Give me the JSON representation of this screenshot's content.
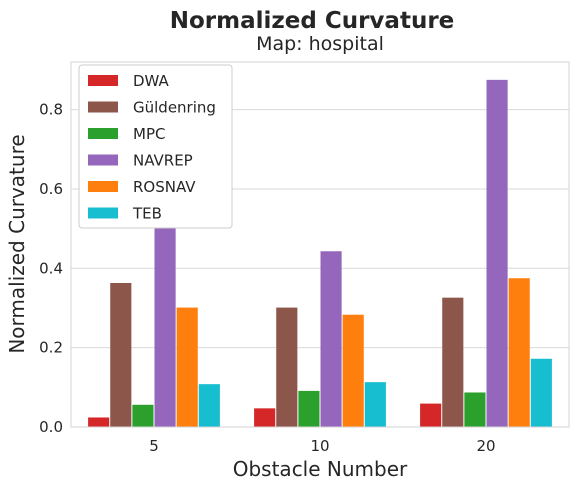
{
  "chart_data": {
    "type": "bar",
    "title": "Normalized Curvature",
    "subtitle": "Map: hospital",
    "xlabel": "Obstacle Number",
    "ylabel": "Normalized Curvature",
    "categories": [
      "5",
      "10",
      "20"
    ],
    "ylim": [
      0,
      0.92
    ],
    "yticks": [
      "0.0",
      "0.2",
      "0.4",
      "0.6",
      "0.8"
    ],
    "grid": "horizontal",
    "legend_position": "top-left",
    "series": [
      {
        "name": "DWA",
        "color": "#d62728",
        "values": [
          0.024,
          0.047,
          0.059
        ]
      },
      {
        "name": "Güldenring",
        "color": "#8c564b",
        "values": [
          0.363,
          0.301,
          0.326
        ]
      },
      {
        "name": "MPC",
        "color": "#2ca02c",
        "values": [
          0.056,
          0.091,
          0.087
        ]
      },
      {
        "name": "NAVREP",
        "color": "#9467bd",
        "values": [
          0.51,
          0.443,
          0.875
        ]
      },
      {
        "name": "ROSNAV",
        "color": "#ff7f0e",
        "values": [
          0.301,
          0.283,
          0.375
        ]
      },
      {
        "name": "TEB",
        "color": "#17becf",
        "values": [
          0.108,
          0.113,
          0.172
        ]
      }
    ]
  }
}
